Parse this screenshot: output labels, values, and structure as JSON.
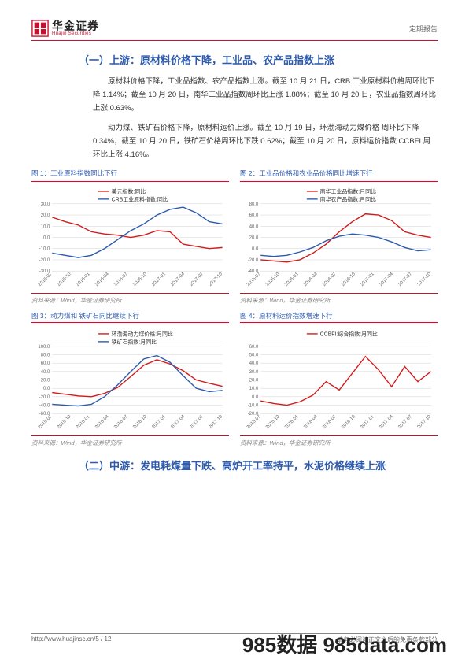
{
  "header": {
    "logo_cn": "华金证券",
    "logo_en": "Huajin Securities",
    "doc_type": "定期报告"
  },
  "section1": {
    "title": "（一）上游：原材料价格下降，工业品、农产品指数上涨",
    "p1": "原材料价格下降，工业品指数、农产品指数上涨。截至 10 月 21 日，CRB 工业原材料价格周环比下降 1.14%；截至 10 月 20 日，南华工业品指数周环比上涨 1.88%；截至 10 月 20 日，农业品指数周环比上涨 0.63%。",
    "p2": "动力煤、铁矿石价格下降，原材料运价上涨。截至 10 月 19 日，环渤海动力煤价格 周环比下降 0.34%；截至 10 月 20 日，铁矿石价格周环比下跌 0.62%；截至 10 月 20 日，原料运价指数 CCBFI 周环比上涨 4.16%。"
  },
  "section2": {
    "title": "（二）中游：发电耗煤量下跌、高炉开工率持平，水泥价格继续上涨"
  },
  "charts_common": {
    "x_labels": [
      "2015-07",
      "2015-10",
      "2016-01",
      "2016-04",
      "2016-07",
      "2016-10",
      "2017-01",
      "2017-04",
      "2017-07",
      "2017-10"
    ],
    "grid_color": "#d0d0d0",
    "axis_color": "#666666",
    "label_fontsize": 6,
    "source": "资料来源：Wind，华金证券研究所"
  },
  "chart1": {
    "caption": "图 1：工业原料指数同比下行",
    "ylim": [
      -30,
      30
    ],
    "ytick_step": 10,
    "series": [
      {
        "name": "美元指数:同比",
        "color": "#d11b1b",
        "values": [
          18,
          14,
          11,
          5,
          3,
          2,
          0,
          2,
          6,
          5,
          -6,
          -8,
          -10,
          -9
        ]
      },
      {
        "name": "CRB工业原料指数:同比",
        "color": "#2e5aac",
        "values": [
          -14,
          -16,
          -18,
          -16,
          -10,
          -2,
          6,
          12,
          20,
          25,
          27,
          22,
          14,
          12
        ]
      }
    ]
  },
  "chart2": {
    "caption": "图 2：工业品价格和农业品价格同比增速下行",
    "ylim": [
      -40,
      80
    ],
    "ytick_step": 20,
    "series": [
      {
        "name": "南华工业品指数:月同比",
        "color": "#d11b1b",
        "values": [
          -20,
          -22,
          -24,
          -20,
          -8,
          8,
          30,
          48,
          62,
          60,
          50,
          30,
          24,
          20
        ]
      },
      {
        "name": "南华农产品指数:月同比",
        "color": "#2e5aac",
        "values": [
          -12,
          -14,
          -12,
          -6,
          2,
          14,
          22,
          26,
          24,
          20,
          12,
          2,
          -4,
          -2
        ]
      }
    ]
  },
  "chart3": {
    "caption": "图 3：动力煤和 铁矿石同比继续下行",
    "ylim": [
      -60,
      100
    ],
    "ytick_step": 20,
    "series": [
      {
        "name": "环渤海动力煤价格:月同比",
        "color": "#d11b1b",
        "values": [
          -10,
          -14,
          -18,
          -20,
          -12,
          2,
          28,
          55,
          68,
          58,
          42,
          20,
          12,
          5
        ]
      },
      {
        "name": "铁矿石指数:月同比",
        "color": "#2e5aac",
        "values": [
          -38,
          -40,
          -42,
          -38,
          -20,
          8,
          40,
          70,
          78,
          62,
          30,
          0,
          -8,
          -5
        ]
      }
    ]
  },
  "chart4": {
    "caption": "图 4：原材料运价指数增速下行",
    "ylim": [
      -20,
      60
    ],
    "ytick_step": 10,
    "series": [
      {
        "name": "CCBFI:综合指数:月同比",
        "color": "#d11b1b",
        "values": [
          -5,
          -8,
          -10,
          -6,
          2,
          18,
          8,
          28,
          48,
          32,
          12,
          36,
          18,
          30
        ]
      }
    ]
  },
  "footer": {
    "url": "http://www.huajinsc.cn/",
    "page": "5 / 12",
    "right": "请务必阅读正文之后的免责条款部分"
  },
  "watermark": "985数据  985data.com"
}
